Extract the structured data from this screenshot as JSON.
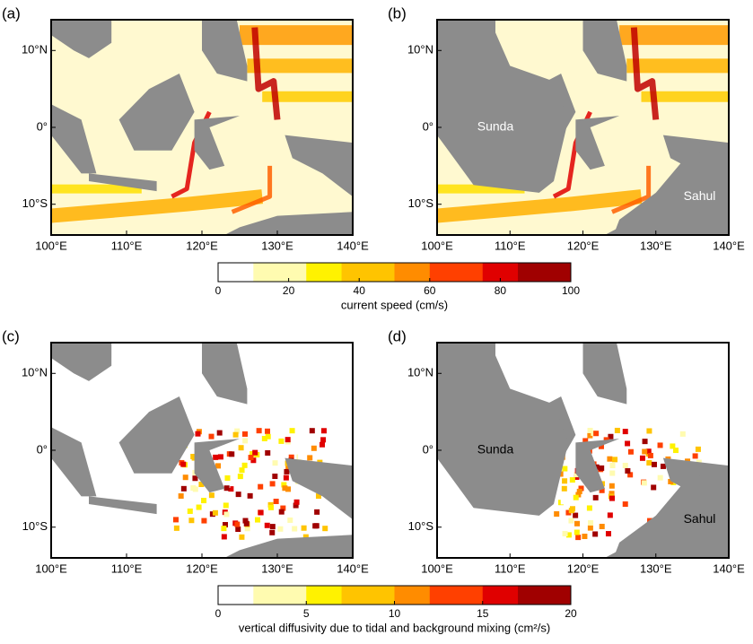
{
  "panels": [
    {
      "label": "(a)",
      "xticks": [
        {
          "value": 100,
          "label": "100°E"
        },
        {
          "value": 110,
          "label": "110°E"
        },
        {
          "value": 120,
          "label": "120°E"
        },
        {
          "value": 130,
          "label": "130°E"
        },
        {
          "value": 140,
          "label": "140°E"
        }
      ],
      "yticks": [
        {
          "value": 10,
          "label": "10°N"
        },
        {
          "value": 0,
          "label": "0°"
        },
        {
          "value": -10,
          "label": "10°S"
        }
      ],
      "xlim": [
        100,
        140
      ],
      "ylim": [
        -14,
        14
      ],
      "annotations": []
    },
    {
      "label": "(b)",
      "xticks": [
        {
          "value": 100,
          "label": "100°E"
        },
        {
          "value": 110,
          "label": "110°E"
        },
        {
          "value": 120,
          "label": "120°E"
        },
        {
          "value": 130,
          "label": "130°E"
        },
        {
          "value": 140,
          "label": "140°E"
        }
      ],
      "yticks": [
        {
          "value": 10,
          "label": "10°N"
        },
        {
          "value": 0,
          "label": "0°"
        },
        {
          "value": -10,
          "label": "10°S"
        }
      ],
      "xlim": [
        100,
        140
      ],
      "ylim": [
        -14,
        14
      ],
      "annotations": [
        "Sunda",
        "Sahul"
      ]
    },
    {
      "label": "(c)",
      "xticks": [
        {
          "value": 100,
          "label": "100°E"
        },
        {
          "value": 110,
          "label": "110°E"
        },
        {
          "value": 120,
          "label": "120°E"
        },
        {
          "value": 130,
          "label": "130°E"
        },
        {
          "value": 140,
          "label": "140°E"
        }
      ],
      "yticks": [
        {
          "value": 10,
          "label": "10°N"
        },
        {
          "value": 0,
          "label": "0°"
        },
        {
          "value": -10,
          "label": "10°S"
        }
      ],
      "xlim": [
        100,
        140
      ],
      "ylim": [
        -14,
        14
      ],
      "annotations": []
    },
    {
      "label": "(d)",
      "xticks": [
        {
          "value": 100,
          "label": "100°E"
        },
        {
          "value": 110,
          "label": "110°E"
        },
        {
          "value": 120,
          "label": "120°E"
        },
        {
          "value": 130,
          "label": "130°E"
        },
        {
          "value": 140,
          "label": "140°E"
        }
      ],
      "yticks": [
        {
          "value": 10,
          "label": "10°N"
        },
        {
          "value": 0,
          "label": "0°"
        },
        {
          "value": -10,
          "label": "10°S"
        }
      ],
      "xlim": [
        100,
        140
      ],
      "ylim": [
        -14,
        14
      ],
      "annotations": [
        "Sunda",
        "Sahul"
      ]
    }
  ],
  "colorbars": [
    {
      "label": "current speed (cm/s)",
      "lim": [
        0,
        100
      ],
      "ticks": [
        0,
        20,
        40,
        60,
        80,
        100
      ],
      "colors": [
        "#ffffff",
        "#fffbb0",
        "#fff200",
        "#ffc400",
        "#ff8c00",
        "#ff4000",
        "#e00000",
        "#a00000",
        "#300000"
      ]
    },
    {
      "label": "vertical diffusivity due to tidal and background mixing (cm²/s)",
      "lim": [
        0,
        20
      ],
      "ticks": [
        0,
        5,
        10,
        15,
        20
      ],
      "colors": [
        "#ffffff",
        "#fffbb0",
        "#fff200",
        "#ffc400",
        "#ff8c00",
        "#ff4000",
        "#e00000",
        "#a00000",
        "#300000"
      ]
    }
  ]
}
